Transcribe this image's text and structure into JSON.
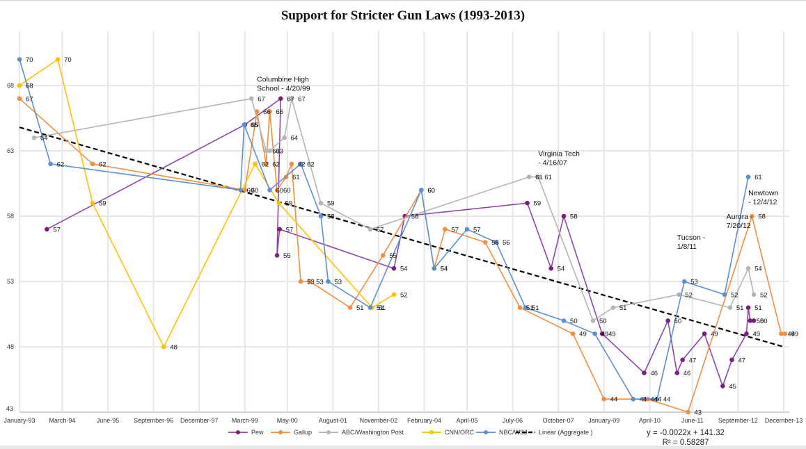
{
  "chart_data": {
    "type": "line",
    "title": "Support for Stricter Gun Laws (1993-2013)",
    "xlabel": "",
    "ylabel": "",
    "ylim": [
      43,
      72
    ],
    "xlim": [
      1993.0,
      2013.92
    ],
    "grid": true,
    "legend_position": "bottom",
    "y_ticks": [
      "43",
      "48",
      "53",
      "58",
      "63",
      "68"
    ],
    "y_tick_values": [
      43,
      48,
      53,
      58,
      63,
      68
    ],
    "x_ticks": [
      "January-93",
      "March-94",
      "June-95",
      "September-96",
      "December-97",
      "March-99",
      "May-00",
      "August-01",
      "November-02",
      "February-04",
      "April-05",
      "July-06",
      "October-07",
      "January-09",
      "April-10",
      "June-11",
      "September-12",
      "December-13"
    ],
    "x_tick_values": [
      1993.0,
      1994.17,
      1995.42,
      1996.67,
      1997.92,
      1999.17,
      2000.33,
      2001.58,
      2002.83,
      2004.08,
      2005.25,
      2006.5,
      2007.75,
      2009.0,
      2010.25,
      2011.42,
      2012.67,
      2013.92
    ],
    "series": [
      {
        "name": "Pew",
        "color": "#7a1f7f",
        "line_color": "#8e44ad",
        "points": [
          [
            1993.75,
            57
          ],
          [
            1999.17,
            65
          ],
          [
            2000.15,
            67
          ],
          [
            2000.05,
            55
          ],
          [
            2000.12,
            57
          ],
          [
            2003.25,
            54
          ],
          [
            2003.55,
            58
          ],
          [
            2006.9,
            59
          ],
          [
            2007.55,
            54
          ],
          [
            2007.9,
            58
          ],
          [
            2008.95,
            49
          ],
          [
            2010.1,
            46
          ],
          [
            2010.75,
            50
          ],
          [
            2011.0,
            46
          ],
          [
            2011.15,
            47
          ],
          [
            2011.75,
            49
          ],
          [
            2012.25,
            45
          ],
          [
            2012.5,
            47
          ],
          [
            2012.9,
            49
          ],
          [
            2012.95,
            51
          ],
          [
            2013.0,
            50
          ],
          [
            2013.1,
            50
          ]
        ],
        "labels": [
          "57",
          "65",
          "67",
          "55",
          "57",
          "54",
          "58",
          "59",
          "54",
          "58",
          "49",
          "46",
          "50",
          "46",
          "47",
          "49",
          "45",
          "47",
          "49",
          "51",
          "50",
          "50"
        ]
      },
      {
        "name": "Gallup",
        "color": "#f28e3c",
        "points": [
          [
            1993.0,
            67
          ],
          [
            1995.0,
            62
          ],
          [
            1999.17,
            60
          ],
          [
            1999.5,
            66
          ],
          [
            1999.75,
            62
          ],
          [
            1999.85,
            66
          ],
          [
            2000.05,
            60
          ],
          [
            2000.3,
            61
          ],
          [
            2000.45,
            62
          ],
          [
            2000.7,
            53
          ],
          [
            2000.95,
            53
          ],
          [
            2002.05,
            51
          ],
          [
            2002.95,
            55
          ],
          [
            2004.0,
            60
          ],
          [
            2004.35,
            54
          ],
          [
            2004.65,
            57
          ],
          [
            2005.75,
            56
          ],
          [
            2006.7,
            51
          ],
          [
            2008.15,
            49
          ],
          [
            2009.0,
            44
          ],
          [
            2010.1,
            44
          ],
          [
            2010.2,
            44
          ],
          [
            2011.3,
            43
          ],
          [
            2013.05,
            58
          ],
          [
            2013.85,
            49
          ],
          [
            2013.95,
            49
          ]
        ],
        "labels": [
          "67",
          "62",
          "60",
          "66",
          "62",
          "66",
          "60",
          "61",
          "62",
          "53",
          "53",
          "51",
          "55",
          "60",
          "54",
          "57",
          "56",
          "51",
          "49",
          "44",
          "44",
          "44",
          "43",
          "58",
          "49",
          "49"
        ]
      },
      {
        "name": "ABC/Washington Post",
        "color": "#b4b4b4",
        "points": [
          [
            1993.4,
            64
          ],
          [
            1999.35,
            67
          ],
          [
            1999.75,
            63
          ],
          [
            1999.85,
            63
          ],
          [
            2000.25,
            64
          ],
          [
            2000.45,
            67
          ],
          [
            2001.25,
            59
          ],
          [
            2002.6,
            57
          ],
          [
            2006.95,
            61
          ],
          [
            2007.2,
            61
          ],
          [
            2008.7,
            50
          ],
          [
            2009.25,
            51
          ],
          [
            2011.05,
            52
          ],
          [
            2012.45,
            51
          ],
          [
            2012.95,
            54
          ],
          [
            2013.1,
            52
          ]
        ],
        "labels": [
          "64",
          "67",
          "63",
          "63",
          "64",
          "67",
          "59",
          "57",
          "61",
          "61",
          "50",
          "51",
          "52",
          "51",
          "54",
          "52"
        ]
      },
      {
        "name": "CNN/ORC",
        "color": "#ffc000",
        "points": [
          [
            1993.0,
            68
          ],
          [
            1994.05,
            70
          ],
          [
            1995.0,
            59
          ],
          [
            1996.95,
            48
          ],
          [
            1999.45,
            62
          ],
          [
            2000.1,
            59
          ],
          [
            2002.65,
            51
          ],
          [
            2003.25,
            52
          ]
        ],
        "labels": [
          "68",
          "70",
          "59",
          "48",
          "62",
          "59",
          "51",
          "52"
        ]
      },
      {
        "name": "NBC/WSJ",
        "color": "#5b8fd4",
        "points": [
          [
            1993.0,
            70
          ],
          [
            1993.85,
            62
          ],
          [
            1999.05,
            60
          ],
          [
            1999.15,
            65
          ],
          [
            1999.85,
            60
          ],
          [
            2000.7,
            62
          ],
          [
            2001.25,
            58
          ],
          [
            2001.45,
            53
          ],
          [
            2002.6,
            51
          ],
          [
            2004.0,
            60
          ],
          [
            2004.35,
            54
          ],
          [
            2005.25,
            57
          ],
          [
            2006.05,
            56
          ],
          [
            2006.85,
            51
          ],
          [
            2007.9,
            50
          ],
          [
            2008.75,
            49
          ],
          [
            2009.8,
            44
          ],
          [
            2010.45,
            44
          ],
          [
            2011.2,
            53
          ],
          [
            2012.3,
            52
          ],
          [
            2012.95,
            61
          ]
        ],
        "labels": [
          "70",
          "62",
          "60",
          "65",
          "60",
          "62",
          "58",
          "53",
          "51",
          "60",
          "54",
          "57",
          "56",
          "51",
          "50",
          "49",
          "44",
          "44",
          "53",
          "52",
          "61"
        ]
      }
    ],
    "trendline": {
      "name": "Linear (Aggregate )",
      "color": "#000000",
      "style": "dashed",
      "equation": "y = -0.0022x + 141.32",
      "r_squared": "R² = 0.58287",
      "start": [
        1993.0,
        64.8
      ],
      "end": [
        2013.92,
        48.0
      ]
    },
    "annotations": [
      {
        "text": [
          "Columbine High",
          "School - 4/20/99"
        ],
        "x": 1999.5,
        "y": 68.3
      },
      {
        "text": [
          "Virginia Tech",
          "- 4/16/07"
        ],
        "x": 2007.2,
        "y": 62.6
      },
      {
        "text": [
          "Tucson -",
          "1/8/11"
        ],
        "x": 2011.0,
        "y": 56.2
      },
      {
        "text": [
          "Aurora -",
          "7/20/12"
        ],
        "x": 2012.35,
        "y": 57.8
      },
      {
        "text": [
          "Newtown",
          "- 12/4/12"
        ],
        "x": 2012.95,
        "y": 59.6
      }
    ]
  },
  "legend": [
    {
      "label": "Pew",
      "color": "#7a1f7f",
      "line_color": "#8e44ad",
      "style": "marker"
    },
    {
      "label": "Gallup",
      "color": "#f28e3c",
      "style": "marker"
    },
    {
      "label": "ABC/Washington Post",
      "color": "#b4b4b4",
      "style": "marker"
    },
    {
      "label": "CNN/ORC",
      "color": "#ffc000",
      "style": "marker"
    },
    {
      "label": "NBC/WSJ",
      "color": "#5b8fd4",
      "style": "marker"
    },
    {
      "label": "Linear (Aggregate )",
      "color": "#000000",
      "style": "dashed"
    }
  ],
  "equation": {
    "line1": "y = -0.0022x + 141.32",
    "line2": "R² = 0.58287"
  }
}
